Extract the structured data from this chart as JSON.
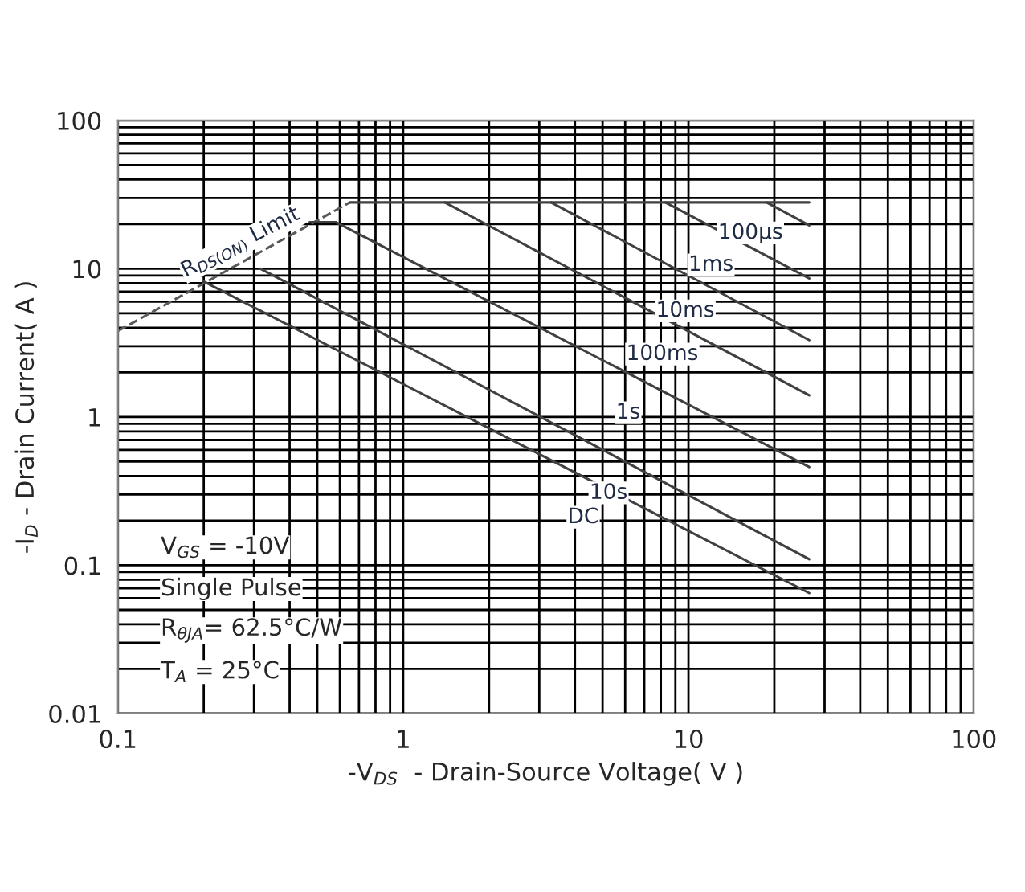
{
  "chart_data": {
    "type": "line",
    "xlabel": "-V$_{DS}$  - Drain-Source Voltage( V )",
    "ylabel": "-I$_{D}$ - Drain Current( A )",
    "log": "xy",
    "xlim": [
      0.1,
      100
    ],
    "ylim": [
      0.01,
      100
    ],
    "xticks": [
      0.1,
      1,
      10,
      100
    ],
    "yticks": [
      0.01,
      0.1,
      1,
      10,
      100
    ],
    "grid": true,
    "line_style": "solid",
    "series": [
      {
        "color": "#595959",
        "line_style": "dashed",
        "x": [
          0.1,
          0.65
        ],
        "values": [
          3.8,
          28
        ]
      },
      {
        "color": "#404040",
        "x": [
          0.65,
          26.5
        ],
        "values": [
          28,
          28
        ]
      },
      {
        "color": "#404040",
        "x": [
          18.8,
          26.5
        ],
        "values": [
          28,
          19.6
        ]
      },
      {
        "color": "#404040",
        "x": [
          8.3,
          26.5
        ],
        "values": [
          28,
          8.6
        ]
      },
      {
        "color": "#404040",
        "x": [
          3.3,
          26.5
        ],
        "values": [
          28,
          3.3
        ]
      },
      {
        "color": "#404040",
        "x": [
          1.4,
          26.5
        ],
        "values": [
          28,
          1.4
        ]
      },
      {
        "color": "#404040",
        "x": [
          0.47,
          0.58,
          26.5
        ],
        "values": [
          20.6,
          20.6,
          0.46
        ]
      },
      {
        "color": "#404040",
        "x": [
          0.316,
          26.5
        ],
        "values": [
          10,
          0.11
        ]
      },
      {
        "color": "#404040",
        "x": [
          0.2,
          26.5
        ],
        "values": [
          8.2,
          0.065
        ]
      }
    ],
    "annotations": [
      "V$_{GS}$ = -10V",
      "Single Pulse",
      "R$_{θJA}$= 62.5°C/W",
      "T$_{A}$ = 25°C",
      {
        "text": "R$_{DS(ON)}$ Limit",
        "x": 0.27,
        "y": 10.9
      },
      {
        "text": "100μs",
        "x": 22,
        "y": 23.8
      },
      {
        "text": "1ms",
        "x": 16,
        "y": 14.5
      },
      {
        "text": "10ms",
        "x": 13,
        "y": 7.1
      },
      {
        "text": "100ms",
        "x": 10.8,
        "y": 3.63
      },
      {
        "text": "1s",
        "x": 8.2,
        "y": 1.46
      },
      {
        "text": "10s",
        "x": 7.0,
        "y": 0.42
      },
      {
        "text": "DC",
        "x": 5.7,
        "y": 0.288
      }
    ]
  }
}
